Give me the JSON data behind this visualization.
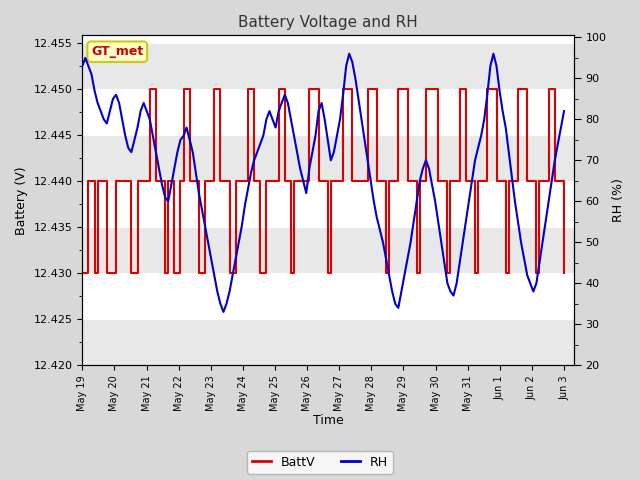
{
  "title": "Battery Voltage and RH",
  "xlabel": "Time",
  "ylabel_left": "Battery (V)",
  "ylabel_right": "RH (%)",
  "ylim_left": [
    12.42,
    12.4558
  ],
  "ylim_right": [
    20,
    100.5
  ],
  "yticks_left": [
    12.42,
    12.425,
    12.43,
    12.435,
    12.44,
    12.445,
    12.45,
    12.455
  ],
  "yticks_right": [
    20,
    30,
    40,
    50,
    60,
    70,
    80,
    90,
    100
  ],
  "bg_color": "#d8d8d8",
  "plot_bg_color": "#ffffff",
  "band_colors": [
    "#e8e8e8",
    "#ffffff"
  ],
  "grid_color": "#d0d0d0",
  "annotation_text": "GT_met",
  "annotation_facecolor": "#ffffcc",
  "annotation_edgecolor": "#cccc00",
  "annotation_textcolor": "#cc0000",
  "batt_color": "#dd0000",
  "rh_color": "#0000cc",
  "legend_batt": "BattV",
  "legend_rh": "RH",
  "xtick_labels": [
    "May 19",
    "May 20",
    "May 21",
    "May 22",
    "May 23",
    "May 24",
    "May 25",
    "May 26",
    "May 27",
    "May 28",
    "May 29",
    "May 30",
    "May 31",
    "Jun 1",
    "Jun 2",
    "Jun 3"
  ],
  "batt_values": [
    12.43,
    12.43,
    12.44,
    12.44,
    12.43,
    12.44,
    12.44,
    12.44,
    12.43,
    12.43,
    12.43,
    12.44,
    12.44,
    12.44,
    12.44,
    12.44,
    12.43,
    12.43,
    12.44,
    12.44,
    12.44,
    12.44,
    12.45,
    12.45,
    12.44,
    12.44,
    12.44,
    12.43,
    12.44,
    12.44,
    12.43,
    12.43,
    12.44,
    12.45,
    12.45,
    12.44,
    12.44,
    12.44,
    12.43,
    12.43,
    12.44,
    12.44,
    12.44,
    12.45,
    12.45,
    12.44,
    12.44,
    12.44,
    12.43,
    12.43,
    12.44,
    12.44,
    12.44,
    12.44,
    12.45,
    12.45,
    12.44,
    12.44,
    12.43,
    12.43,
    12.44,
    12.44,
    12.44,
    12.44,
    12.45,
    12.45,
    12.44,
    12.44,
    12.43,
    12.44,
    12.44,
    12.44,
    12.44,
    12.44,
    12.45,
    12.45,
    12.45,
    12.44,
    12.44,
    12.44,
    12.43,
    12.44,
    12.44,
    12.44,
    12.44,
    12.45,
    12.45,
    12.45,
    12.44,
    12.44,
    12.44,
    12.44,
    12.44,
    12.45,
    12.45,
    12.45,
    12.44,
    12.44,
    12.44,
    12.43,
    12.44,
    12.44,
    12.44,
    12.45,
    12.45,
    12.45,
    12.44,
    12.44,
    12.44,
    12.43,
    12.44,
    12.44,
    12.45,
    12.45,
    12.45,
    12.45,
    12.44,
    12.44,
    12.44,
    12.43,
    12.44,
    12.44,
    12.44,
    12.45,
    12.45,
    12.44,
    12.44,
    12.44,
    12.43,
    12.44,
    12.44,
    12.44,
    12.45,
    12.45,
    12.45,
    12.44,
    12.44,
    12.44,
    12.43,
    12.44,
    12.44,
    12.44,
    12.45,
    12.45,
    12.45,
    12.44,
    12.44,
    12.44,
    12.43,
    12.44,
    12.44,
    12.44,
    12.45,
    12.45,
    12.44,
    12.44,
    12.44,
    12.43
  ],
  "rh_values": [
    93,
    95,
    93,
    91,
    87,
    84,
    82,
    80,
    79,
    82,
    85,
    86,
    84,
    80,
    76,
    73,
    72,
    75,
    78,
    82,
    84,
    82,
    80,
    76,
    72,
    68,
    64,
    61,
    60,
    64,
    68,
    72,
    75,
    76,
    78,
    75,
    72,
    67,
    62,
    58,
    54,
    50,
    46,
    42,
    38,
    35,
    33,
    35,
    38,
    42,
    46,
    50,
    54,
    59,
    63,
    67,
    70,
    72,
    74,
    76,
    80,
    82,
    80,
    78,
    82,
    84,
    86,
    84,
    80,
    76,
    72,
    68,
    65,
    62,
    68,
    72,
    76,
    82,
    84,
    80,
    75,
    70,
    72,
    76,
    80,
    86,
    93,
    96,
    94,
    90,
    85,
    80,
    75,
    70,
    65,
    60,
    56,
    53,
    50,
    46,
    42,
    38,
    35,
    34,
    38,
    42,
    46,
    50,
    55,
    60,
    65,
    68,
    70,
    68,
    64,
    60,
    55,
    50,
    45,
    40,
    38,
    37,
    40,
    45,
    50,
    55,
    60,
    65,
    70,
    73,
    76,
    80,
    86,
    93,
    96,
    93,
    87,
    82,
    78,
    72,
    66,
    60,
    55,
    50,
    46,
    42,
    40,
    38,
    40,
    45,
    50,
    55,
    60,
    65,
    70,
    74,
    78,
    82
  ]
}
